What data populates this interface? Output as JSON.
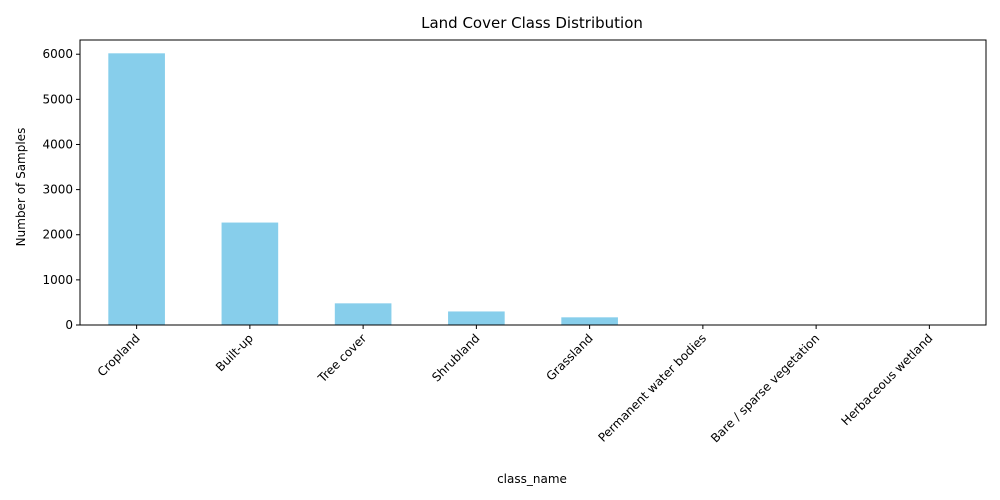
{
  "chart_data": {
    "type": "bar",
    "title": "Land Cover Class Distribution",
    "xlabel": "class_name",
    "ylabel": "Number of Samples",
    "categories": [
      "Cropland",
      "Built-up",
      "Tree cover",
      "Shrubland",
      "Grassland",
      "Permanent water bodies",
      "Bare / sparse vegetation",
      "Herbaceous wetland"
    ],
    "values": [
      6020,
      2270,
      480,
      300,
      170,
      2,
      2,
      1
    ],
    "ylim": [
      0,
      6315
    ],
    "yticks": [
      0,
      1000,
      2000,
      3000,
      4000,
      5000,
      6000
    ],
    "bar_color": "#87ceeb",
    "grid": false,
    "legend": "none"
  }
}
